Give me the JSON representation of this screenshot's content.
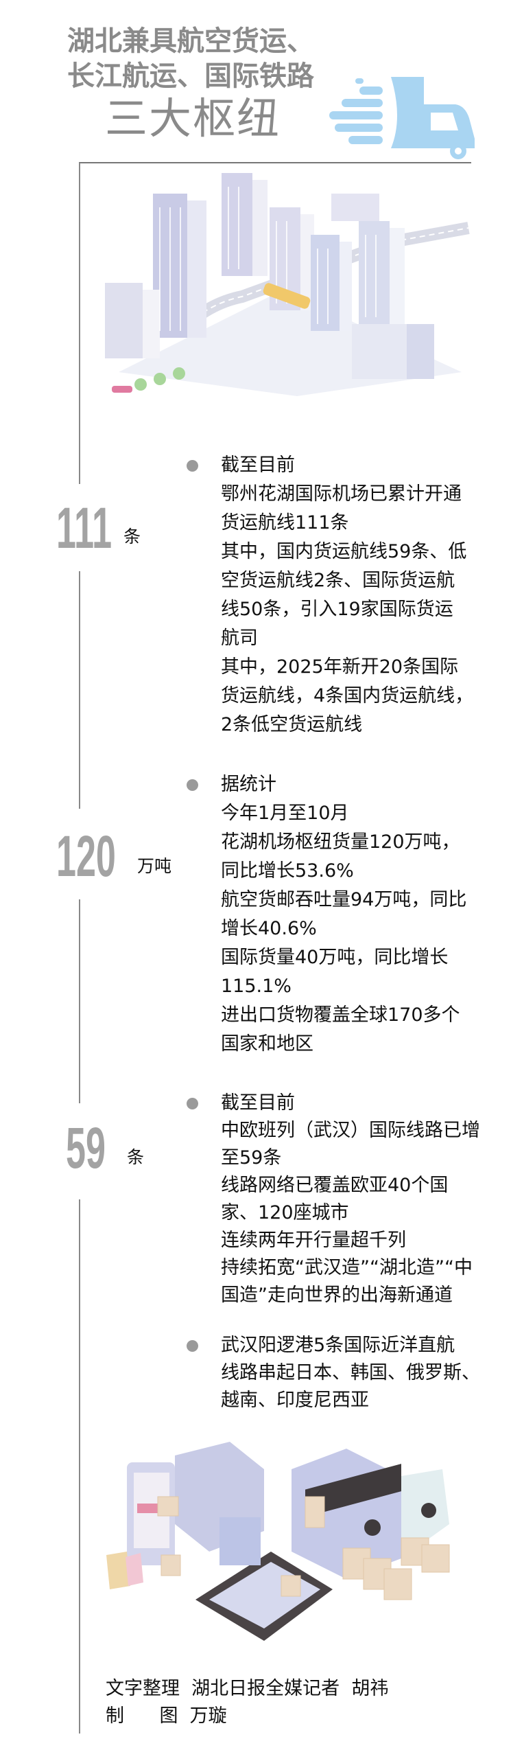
{
  "header": {
    "title_line1": "湖北兼具航空货运、",
    "title_line2": "长江航运、国际铁路",
    "subtitle": "三大枢纽",
    "truck_icon": "fast-delivery-truck-icon",
    "truck_color": "#a9d5f2"
  },
  "sections": [
    {
      "big_number": "111",
      "unit": "条",
      "lines": [
        "截至目前",
        "鄂州花湖国际机场已累计开通",
        "货运航线111条",
        "其中，国内货运航线59条、低",
        "空货运航线2条、国际货运航",
        "线50条，引入19家国际货运",
        "航司",
        "其中，2025年新开20条国际",
        "货运航线，4条国内货运航线，",
        "2条低空货运航线"
      ]
    },
    {
      "big_number": "120",
      "unit": "万吨",
      "lines": [
        "据统计",
        "今年1月至10月",
        "花湖机场枢纽货量120万吨，",
        "同比增长53.6%",
        "航空货邮吞吐量94万吨，同比",
        "增长40.6%",
        "国际货量40万吨，同比增长",
        "115.1%",
        "进出口货物覆盖全球170多个",
        "国家和地区"
      ]
    },
    {
      "big_number": "59",
      "unit": "条",
      "lines": [
        "截至目前",
        "中欧班列（武汉）国际线路已增",
        "至59条",
        "线路网络已覆盖欧亚40个国",
        "家、120座城市",
        "连续两年开行量超千列",
        "持续拓宽“武汉造”“湖北造”“中",
        "国造”走向世界的出海新通道"
      ]
    },
    {
      "lines": [
        "武汉阳逻港5条国际近洋直航",
        "线路串起日本、韩国、俄罗斯、",
        "越南、印度尼西亚"
      ]
    }
  ],
  "credits": {
    "line1": "文字整理  湖北日报全媒记者  胡祎",
    "line2": "制      图  万璇"
  },
  "colors": {
    "accent_gray": "#8a8a8a",
    "number_gray": "#a3a3a3",
    "bullet_gray": "#9a9a9a"
  }
}
